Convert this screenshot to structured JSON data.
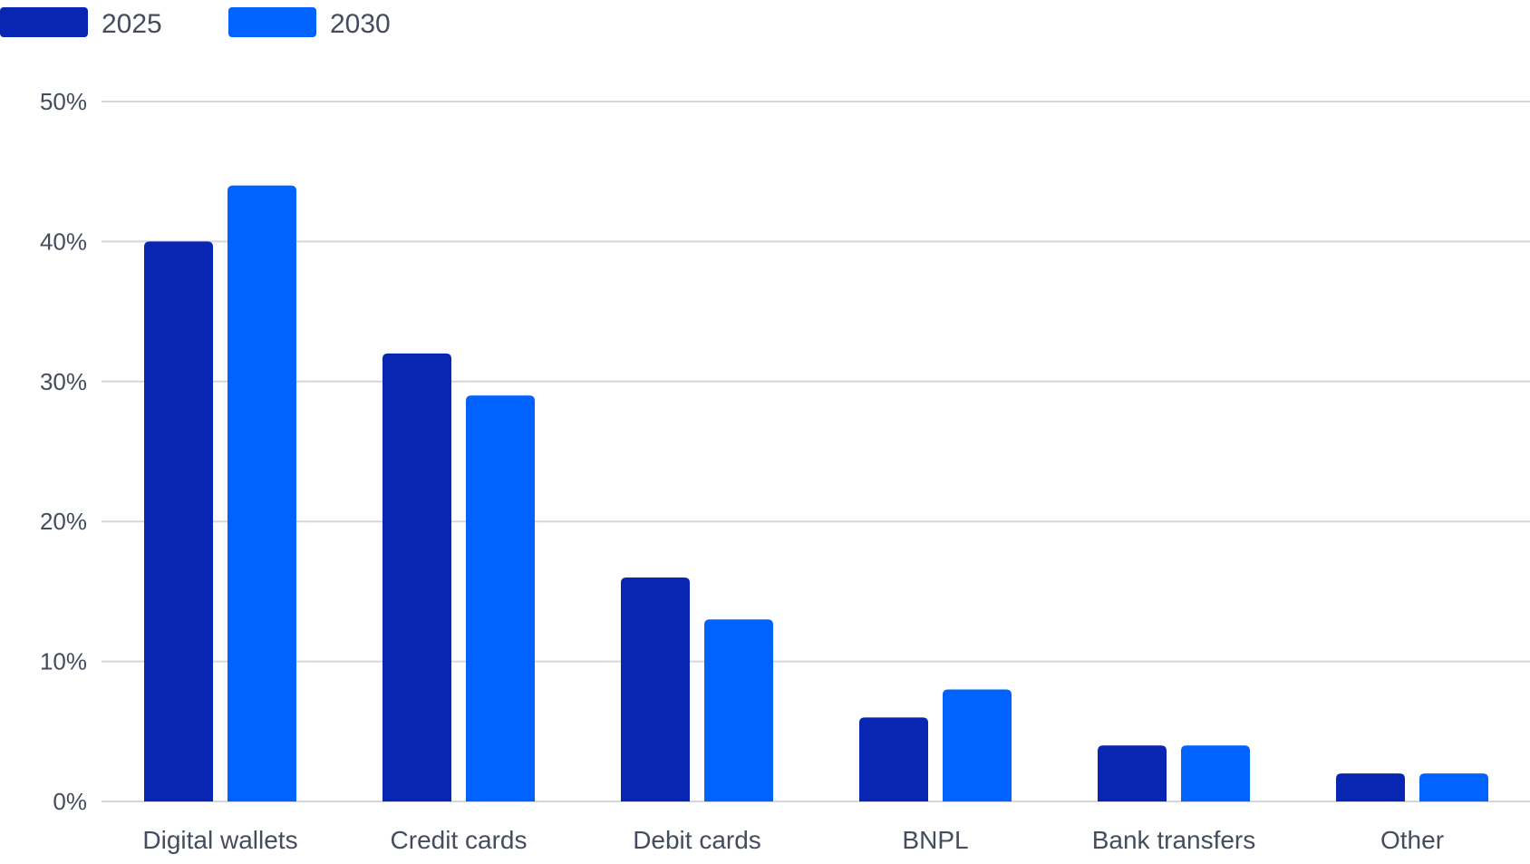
{
  "chart_data": {
    "type": "bar",
    "categories": [
      "Digital wallets",
      "Credit cards",
      "Debit cards",
      "BNPL",
      "Bank transfers",
      "Other"
    ],
    "series": [
      {
        "name": "2025",
        "values": [
          40,
          32,
          16,
          6,
          4,
          2
        ],
        "color": "#0826b1"
      },
      {
        "name": "2030",
        "values": [
          44,
          29,
          13,
          8,
          4,
          2
        ],
        "color": "#0063ff"
      }
    ],
    "ylim": [
      0,
      50
    ],
    "yticks": [
      0,
      10,
      20,
      30,
      40,
      50
    ],
    "ytick_labels": [
      "0%",
      "10%",
      "20%",
      "30%",
      "40%",
      "50%"
    ],
    "legend_position": "top-left",
    "grid": true,
    "gridline_color": "#d4d6de",
    "text_color": "#454c5e"
  }
}
